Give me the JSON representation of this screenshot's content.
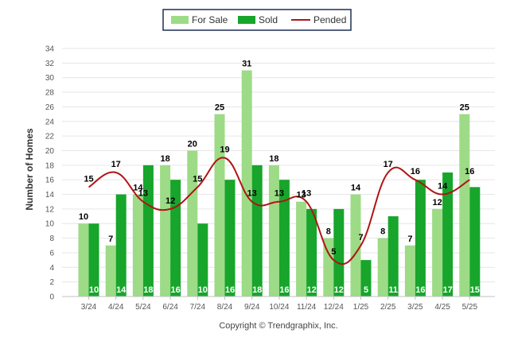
{
  "chart_data": {
    "type": "bar",
    "ylabel": "Number of Homes",
    "ylim": [
      0,
      34
    ],
    "yticks": [
      0,
      2,
      4,
      6,
      8,
      10,
      12,
      14,
      16,
      18,
      20,
      22,
      24,
      26,
      28,
      30,
      32,
      34
    ],
    "grid": true,
    "legend_position": "top-center",
    "categories": [
      "3/24",
      "4/24",
      "5/24",
      "6/24",
      "7/24",
      "8/24",
      "9/24",
      "10/24",
      "11/24",
      "12/24",
      "1/25",
      "2/25",
      "3/25",
      "4/25",
      "5/25"
    ],
    "series": [
      {
        "name": "For Sale",
        "type": "bar",
        "color": "#9ddb87",
        "values": [
          10,
          7,
          14,
          18,
          20,
          25,
          31,
          18,
          13,
          8,
          14,
          8,
          7,
          12,
          25
        ]
      },
      {
        "name": "Sold",
        "type": "bar",
        "color": "#17a52b",
        "values": [
          10,
          14,
          18,
          16,
          10,
          16,
          18,
          16,
          12,
          12,
          5,
          11,
          16,
          17,
          15
        ]
      },
      {
        "name": "Pended",
        "type": "line",
        "color": "#b01414",
        "values": [
          15,
          17,
          13,
          12,
          15,
          19,
          13,
          13,
          13,
          5,
          7,
          17,
          16,
          14,
          16
        ]
      }
    ]
  },
  "footer": {
    "copyright": "Copyright © Trendgraphix, Inc."
  }
}
